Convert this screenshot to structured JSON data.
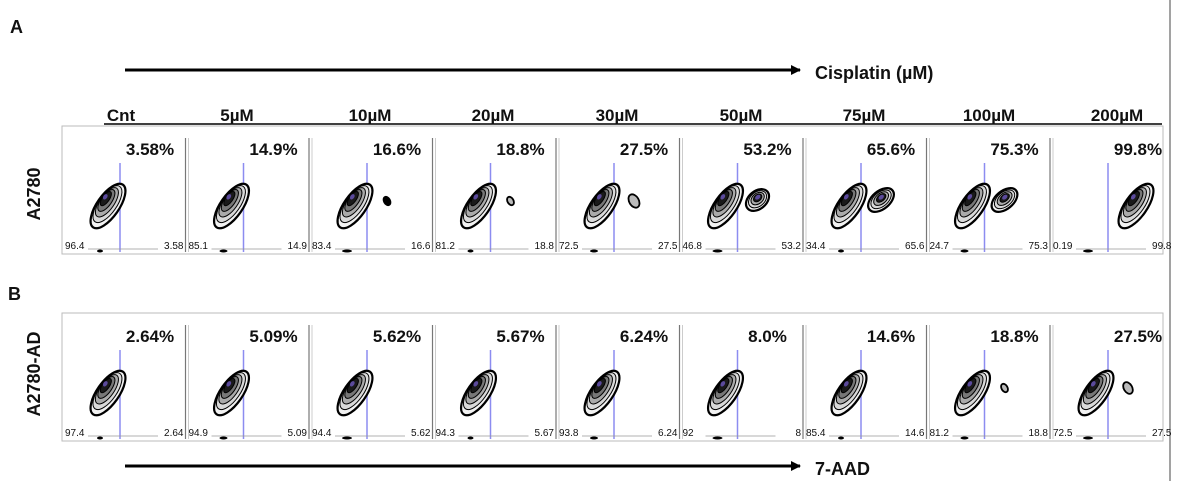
{
  "panels": [
    {
      "letter": "A",
      "row_label": "A2780",
      "arrow_label": "Cisplatin (µM)",
      "doses": [
        "Cnt",
        "5µM",
        "10µM",
        "20µM",
        "30µM",
        "50µM",
        "75µM",
        "100µM",
        "200µM"
      ],
      "percents": [
        "3.58%",
        "14.9%",
        "16.6%",
        "18.8%",
        "27.5%",
        "53.2%",
        "65.6%",
        "75.3%",
        "99.8%"
      ],
      "left_values": [
        "96.4",
        "85.1",
        "83.4",
        "81.2",
        "72.5",
        "46.8",
        "34.4",
        "24.7",
        "0.19"
      ],
      "right_values": [
        "3.58",
        "14.9",
        "16.6",
        "18.8",
        "27.5",
        "53.2",
        "65.6",
        "75.3",
        "99.8"
      ]
    },
    {
      "letter": "B",
      "row_label": "A2780-AD",
      "arrow_label": "7-AAD",
      "percents": [
        "2.64%",
        "5.09%",
        "5.62%",
        "5.67%",
        "6.24%",
        "8.0%",
        "14.6%",
        "18.8%",
        "27.5%"
      ],
      "left_values": [
        "97.4",
        "94.9",
        "94.4",
        "94.3",
        "93.8",
        "92",
        "85.4",
        "81.2",
        "72.5"
      ],
      "right_values": [
        "2.64",
        "5.09",
        "5.62",
        "5.67",
        "6.24",
        "8",
        "14.6",
        "18.8",
        "27.5"
      ]
    }
  ]
}
